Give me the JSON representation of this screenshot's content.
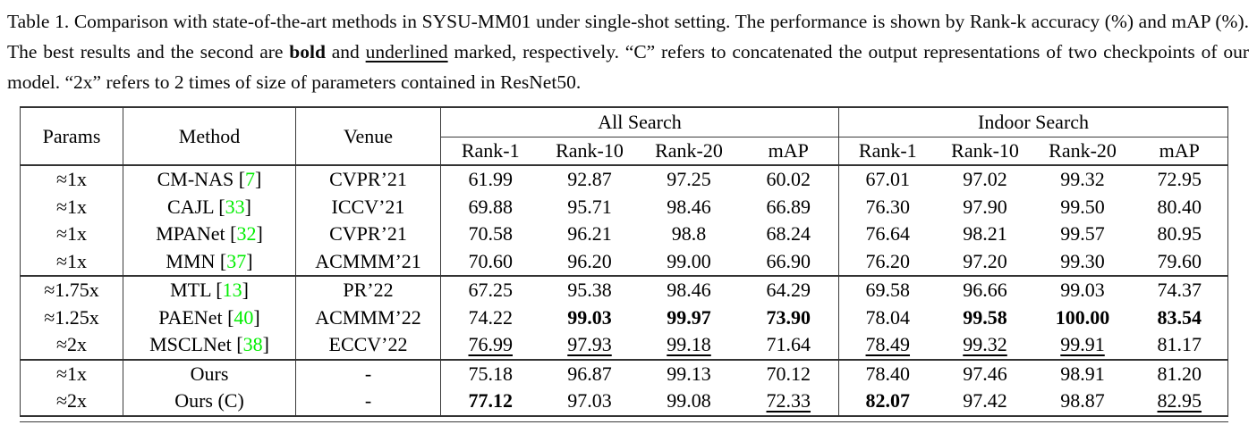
{
  "caption": {
    "segments": [
      {
        "text": "Table 1.  Comparison with state-of-the-art methods in SYSU-MM01 under single-shot setting.  The performance is shown by Rank-k accuracy (%) and mAP (%). The best results and the second are "
      },
      {
        "text": "bold",
        "style": "bold"
      },
      {
        "text": " and "
      },
      {
        "text": "underlined",
        "style": "underline"
      },
      {
        "text": " marked, respectively. “C” refers to concatenated the output representations of two checkpoints of our model. “2x” refers to 2 times of size of parameters contained in ResNet50."
      }
    ]
  },
  "table": {
    "accent_green": "#00ee00",
    "cite_open": "[",
    "cite_close": "]",
    "head": {
      "params": "Params",
      "method": "Method",
      "venue": "Venue",
      "groups": [
        {
          "label": "All Search"
        },
        {
          "label": "Indoor Search"
        }
      ],
      "sub": [
        "Rank-1",
        "Rank-10",
        "Rank-20",
        "mAP"
      ]
    },
    "rows": [
      {
        "params": "≈1x",
        "method": "CM-NAS",
        "ref": "7",
        "venue": "CVPR’21",
        "all": [
          {
            "v": "61.99"
          },
          {
            "v": "92.87"
          },
          {
            "v": "97.25"
          },
          {
            "v": "60.02"
          }
        ],
        "indoor": [
          {
            "v": "67.01"
          },
          {
            "v": "97.02"
          },
          {
            "v": "99.32"
          },
          {
            "v": "72.95"
          }
        ]
      },
      {
        "params": "≈1x",
        "method": "CAJL",
        "ref": "33",
        "venue": "ICCV’21",
        "all": [
          {
            "v": "69.88"
          },
          {
            "v": "95.71"
          },
          {
            "v": "98.46"
          },
          {
            "v": "66.89"
          }
        ],
        "indoor": [
          {
            "v": "76.30"
          },
          {
            "v": "97.90"
          },
          {
            "v": "99.50"
          },
          {
            "v": "80.40"
          }
        ]
      },
      {
        "params": "≈1x",
        "method": "MPANet",
        "ref": "32",
        "venue": "CVPR’21",
        "all": [
          {
            "v": "70.58"
          },
          {
            "v": "96.21"
          },
          {
            "v": "98.8"
          },
          {
            "v": "68.24"
          }
        ],
        "indoor": [
          {
            "v": "76.64"
          },
          {
            "v": "98.21"
          },
          {
            "v": "99.57"
          },
          {
            "v": "80.95"
          }
        ]
      },
      {
        "params": "≈1x",
        "method": "MMN",
        "ref": "37",
        "venue": "ACMMM’21",
        "all": [
          {
            "v": "70.60"
          },
          {
            "v": "96.20"
          },
          {
            "v": "99.00"
          },
          {
            "v": "66.90"
          }
        ],
        "indoor": [
          {
            "v": "76.20"
          },
          {
            "v": "97.20"
          },
          {
            "v": "99.30"
          },
          {
            "v": "79.60"
          }
        ]
      },
      {
        "group_start": true,
        "params": "≈1.75x",
        "method": "MTL",
        "ref": "13",
        "venue": "PR’22",
        "all": [
          {
            "v": "67.25"
          },
          {
            "v": "95.38"
          },
          {
            "v": "98.46"
          },
          {
            "v": "64.29"
          }
        ],
        "indoor": [
          {
            "v": "69.58"
          },
          {
            "v": "96.66"
          },
          {
            "v": "99.03"
          },
          {
            "v": "74.37"
          }
        ]
      },
      {
        "params": "≈1.25x",
        "method": "PAENet",
        "ref": "40",
        "venue": "ACMMM’22",
        "all": [
          {
            "v": "74.22"
          },
          {
            "v": "99.03",
            "s": "b"
          },
          {
            "v": "99.97",
            "s": "b"
          },
          {
            "v": "73.90",
            "s": "b"
          }
        ],
        "indoor": [
          {
            "v": "78.04"
          },
          {
            "v": "99.58",
            "s": "b"
          },
          {
            "v": "100.00",
            "s": "b"
          },
          {
            "v": "83.54",
            "s": "b"
          }
        ]
      },
      {
        "params": "≈2x",
        "method": "MSCLNet",
        "ref": "38",
        "venue": "ECCV’22",
        "all": [
          {
            "v": "76.99",
            "s": "u"
          },
          {
            "v": "97.93",
            "s": "u"
          },
          {
            "v": "99.18",
            "s": "u"
          },
          {
            "v": "71.64"
          }
        ],
        "indoor": [
          {
            "v": "78.49",
            "s": "u"
          },
          {
            "v": "99.32",
            "s": "u"
          },
          {
            "v": "99.91",
            "s": "u"
          },
          {
            "v": "81.17"
          }
        ]
      },
      {
        "group_start": true,
        "params": "≈1x",
        "method": "Ours",
        "venue": "-",
        "all": [
          {
            "v": "75.18"
          },
          {
            "v": "96.87"
          },
          {
            "v": "99.13"
          },
          {
            "v": "70.12"
          }
        ],
        "indoor": [
          {
            "v": "78.40"
          },
          {
            "v": "97.46"
          },
          {
            "v": "98.91"
          },
          {
            "v": "81.20"
          }
        ]
      },
      {
        "params": "≈2x",
        "method": "Ours (C)",
        "venue": "-",
        "all": [
          {
            "v": "77.12",
            "s": "b"
          },
          {
            "v": "97.03"
          },
          {
            "v": "99.08"
          },
          {
            "v": "72.33",
            "s": "u"
          }
        ],
        "indoor": [
          {
            "v": "82.07",
            "s": "b"
          },
          {
            "v": "97.42"
          },
          {
            "v": "98.87"
          },
          {
            "v": "82.95",
            "s": "u"
          }
        ]
      }
    ]
  }
}
